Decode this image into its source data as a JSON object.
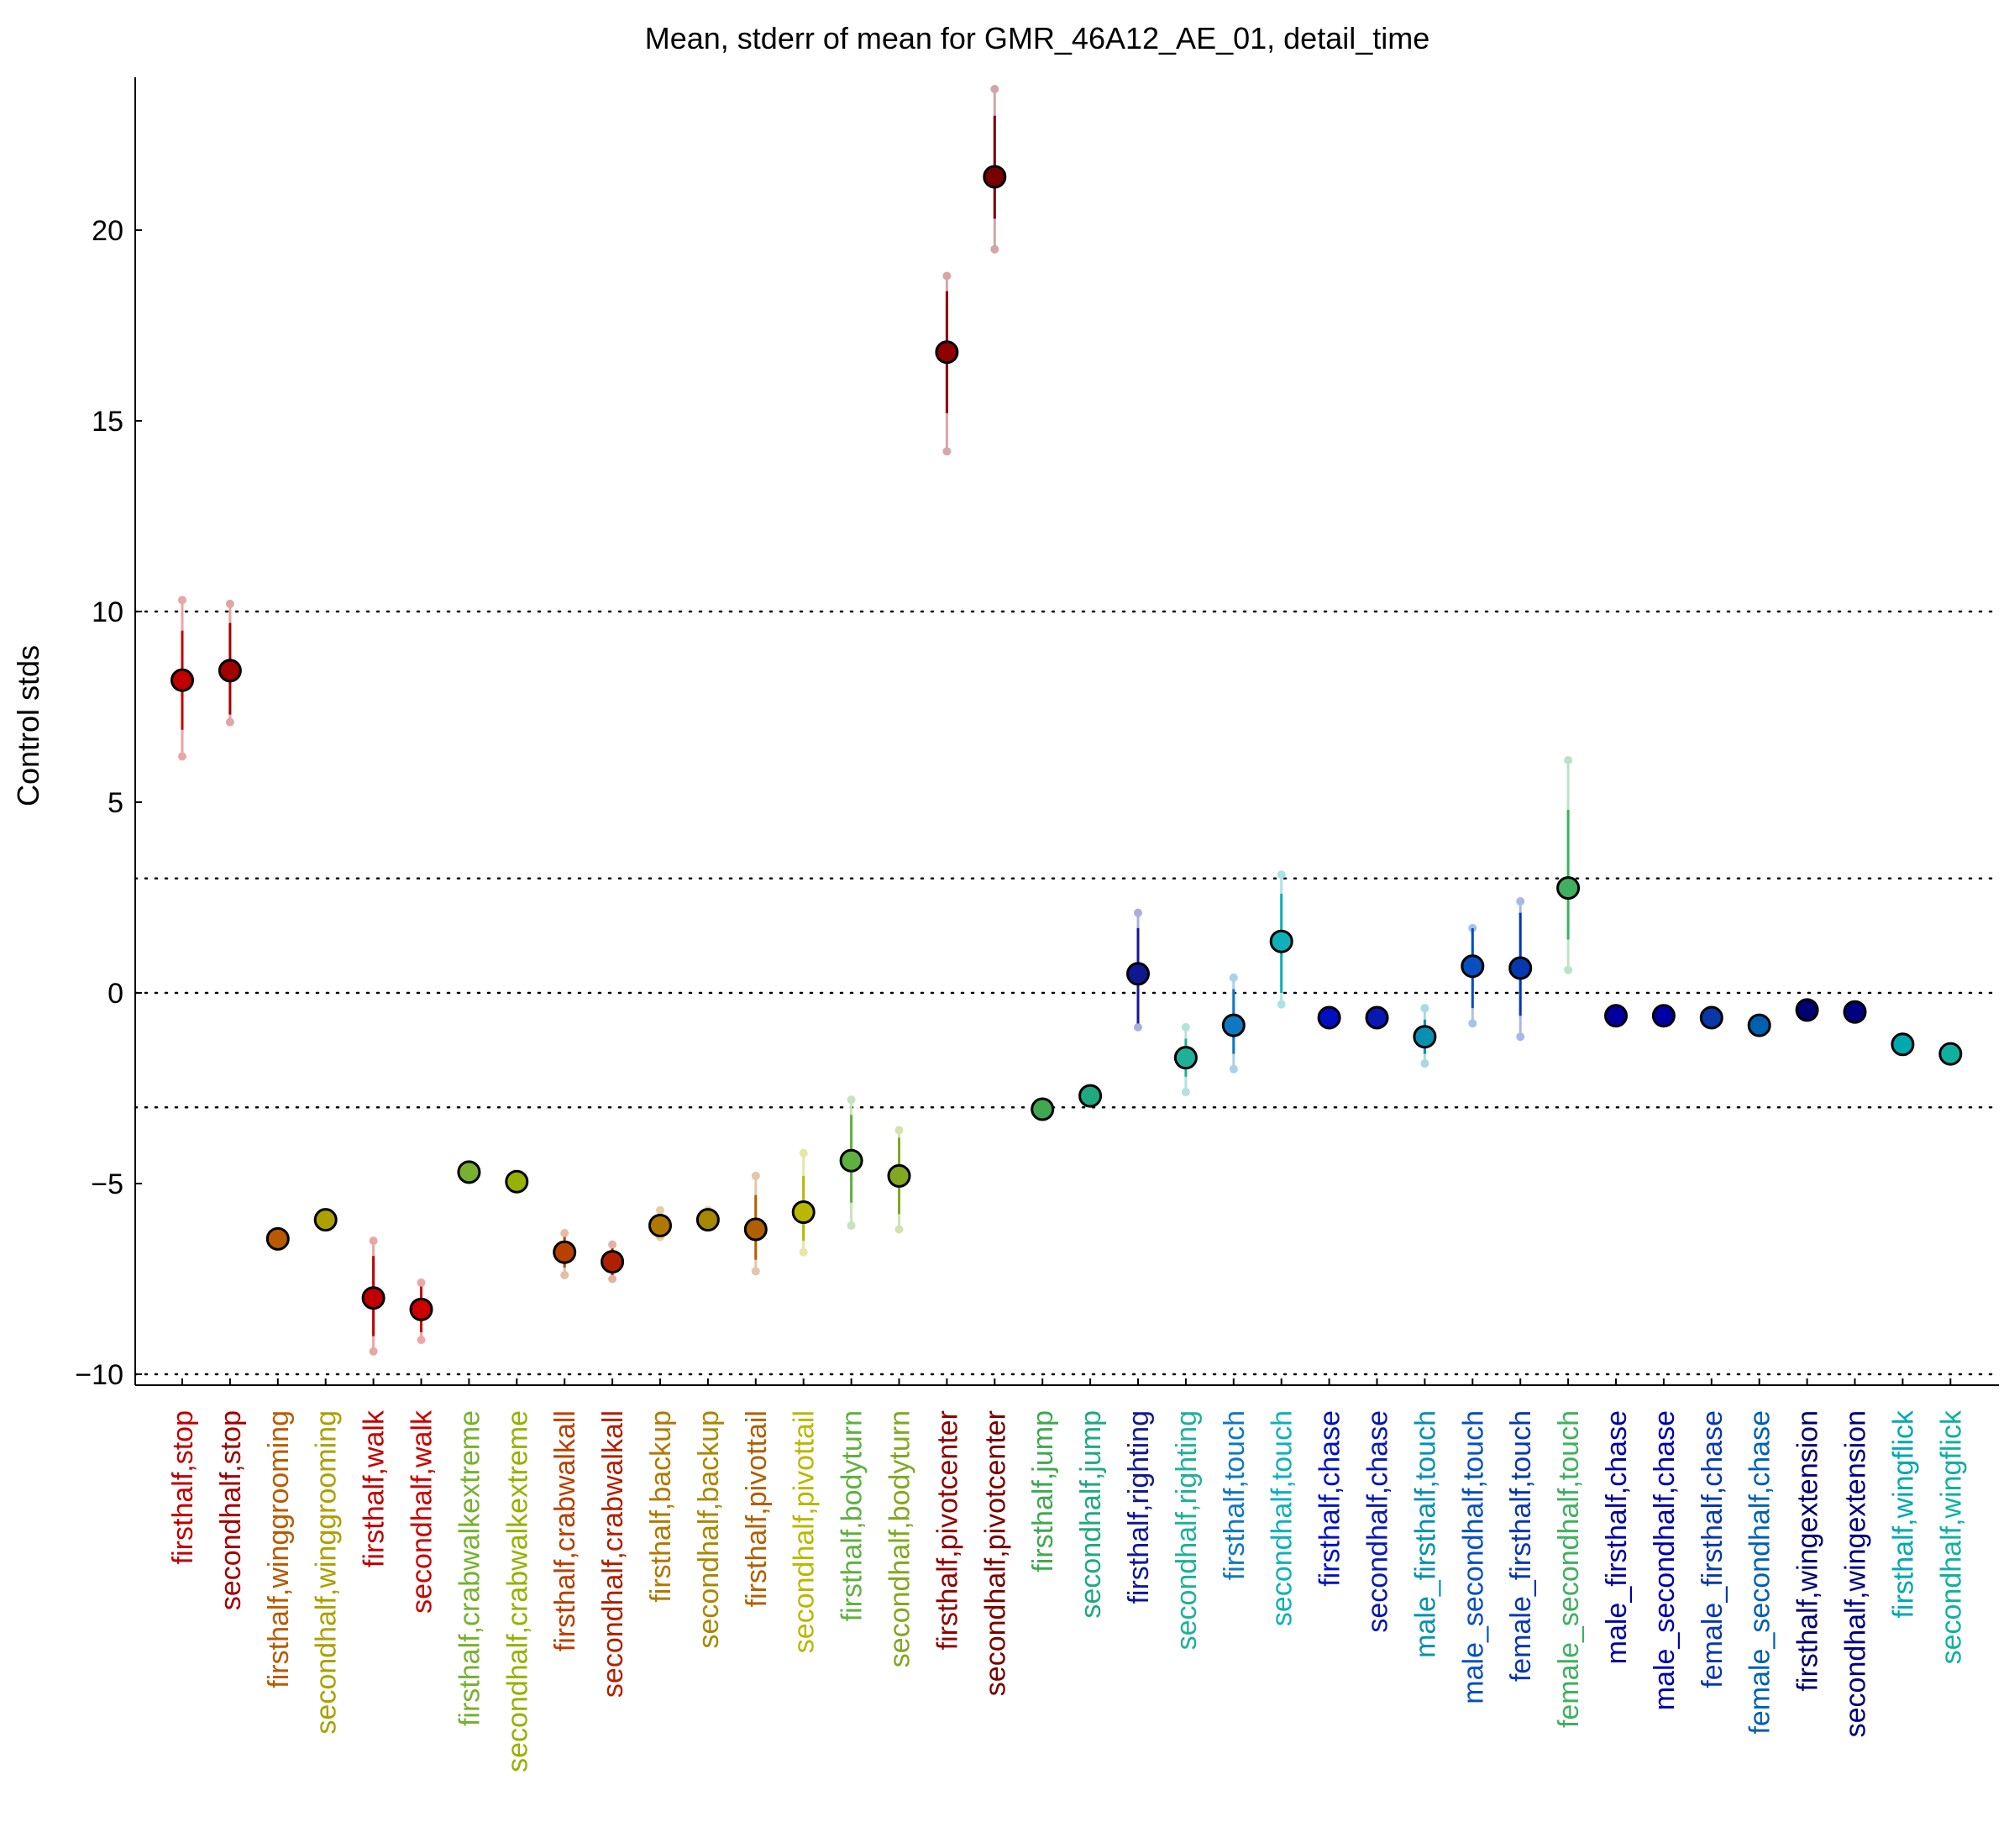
{
  "chart_data": {
    "type": "scatter",
    "title": "Mean, stderr of mean for GMR_46A12_AE_01, detail_time",
    "xlabel": "",
    "ylabel": "Control stds",
    "ylim": [
      -10.3,
      24.0
    ],
    "yticks": [
      -10,
      -5,
      0,
      5,
      10,
      15,
      20
    ],
    "reference_lines": [
      -10,
      -3,
      0,
      3,
      10
    ],
    "grid": false,
    "categories": [
      "firsthalf,stop",
      "secondhalf,stop",
      "firsthalf,winggrooming",
      "secondhalf,winggrooming",
      "firsthalf,walk",
      "secondhalf,walk",
      "firsthalf,crabwalkextreme",
      "secondhalf,crabwalkextreme",
      "firsthalf,crabwalkall",
      "secondhalf,crabwalkall",
      "firsthalf,backup",
      "secondhalf,backup",
      "firsthalf,pivottail",
      "secondhalf,pivottail",
      "firsthalf,bodyturn",
      "secondhalf,bodyturn",
      "firsthalf,pivotcenter",
      "secondhalf,pivotcenter",
      "firsthalf,jump",
      "secondhalf,jump",
      "firsthalf,righting",
      "secondhalf,righting",
      "firsthalf,touch",
      "secondhalf,touch",
      "firsthalf,chase",
      "secondhalf,chase",
      "male_firsthalf,touch",
      "male_secondhalf,touch",
      "female_firsthalf,touch",
      "female_secondhalf,touch",
      "male_firsthalf,chase",
      "male_secondhalf,chase",
      "female_firsthalf,chase",
      "female_secondhalf,chase",
      "firsthalf,wingextension",
      "secondhalf,wingextension",
      "firsthalf,wingflick",
      "secondhalf,wingflick"
    ],
    "colors": [
      "#c00000",
      "#a00000",
      "#b85a00",
      "#aaa000",
      "#c00000",
      "#cc0000",
      "#78b030",
      "#98b000",
      "#b84000",
      "#b02000",
      "#b07800",
      "#a88800",
      "#b06000",
      "#b8b800",
      "#60b040",
      "#80a820",
      "#900000",
      "#780000",
      "#40a850",
      "#20a880",
      "#101890",
      "#20b098",
      "#1078c0",
      "#10b0b8",
      "#0010c0",
      "#0818b0",
      "#0890b0",
      "#0850c0",
      "#0838b0",
      "#40b060",
      "#0000a0",
      "#0000a8",
      "#0838a8",
      "#0060b0",
      "#000070",
      "#000080",
      "#00a8b0",
      "#10b0a0"
    ],
    "series": [
      {
        "values": [
          8.2,
          8.45,
          -6.45,
          -5.95,
          -8.0,
          -8.3,
          -4.7,
          -4.95,
          -6.8,
          -7.05,
          -6.1,
          -5.95,
          -6.2,
          -5.75,
          -4.4,
          -4.8,
          16.8,
          21.4,
          -3.05,
          -2.7,
          0.5,
          -1.7,
          -0.85,
          1.35,
          -0.65,
          -0.65,
          -1.15,
          0.7,
          0.65,
          2.75,
          -0.6,
          -0.6,
          -0.65,
          -0.85,
          -0.45,
          -0.5,
          -1.35,
          -1.6
        ],
        "err_low": [
          6.9,
          7.3,
          -6.45,
          -5.95,
          -9.0,
          -8.9,
          -4.7,
          -4.95,
          -7.2,
          -7.4,
          -6.3,
          -6.05,
          -7.0,
          -6.5,
          -5.5,
          -5.8,
          15.2,
          20.3,
          -3.05,
          -2.7,
          -0.8,
          -2.2,
          -1.6,
          0.0,
          -0.65,
          -0.65,
          -1.6,
          -0.4,
          -0.6,
          1.4,
          -0.6,
          -0.6,
          -0.65,
          -0.85,
          -0.45,
          -0.5,
          -1.35,
          -1.6
        ],
        "err_high": [
          9.5,
          9.7,
          -6.45,
          -5.95,
          -6.9,
          -7.7,
          -4.7,
          -4.95,
          -6.4,
          -6.7,
          -5.9,
          -5.8,
          -5.3,
          -4.8,
          -3.2,
          -3.8,
          18.4,
          23.0,
          -3.05,
          -2.7,
          1.7,
          -1.2,
          0.1,
          2.6,
          -0.65,
          -0.65,
          -0.7,
          1.7,
          2.1,
          4.8,
          -0.6,
          -0.6,
          -0.65,
          -0.85,
          -0.45,
          -0.5,
          -1.35,
          -1.6
        ],
        "range_low": [
          6.2,
          7.1,
          -6.45,
          -5.95,
          -9.4,
          -9.1,
          -4.7,
          -4.95,
          -7.4,
          -7.5,
          -6.4,
          -6.1,
          -7.3,
          -6.8,
          -6.1,
          -6.2,
          14.2,
          19.5,
          -3.05,
          -2.7,
          -0.9,
          -2.6,
          -2.0,
          -0.3,
          -0.65,
          -0.65,
          -1.85,
          -0.8,
          -1.15,
          0.6,
          -0.6,
          -0.6,
          -0.65,
          -0.85,
          -0.45,
          -0.5,
          -1.35,
          -1.6
        ],
        "range_high": [
          10.3,
          10.2,
          -6.45,
          -5.95,
          -6.5,
          -7.6,
          -4.7,
          -4.95,
          -6.3,
          -6.6,
          -5.7,
          -5.7,
          -4.8,
          -4.2,
          -2.8,
          -3.6,
          18.8,
          23.7,
          -3.05,
          -2.7,
          2.1,
          -0.9,
          0.4,
          3.1,
          -0.65,
          -0.65,
          -0.4,
          1.7,
          2.4,
          6.1,
          -0.6,
          -0.6,
          -0.65,
          -0.85,
          -0.45,
          -0.5,
          -1.35,
          -1.6
        ]
      }
    ]
  }
}
